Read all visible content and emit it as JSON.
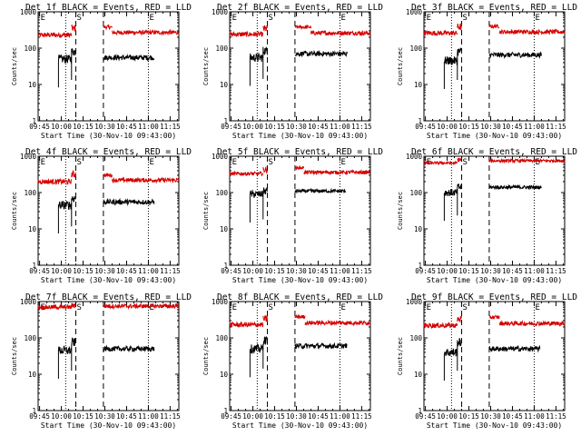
{
  "chart_data": [
    {
      "type": "line",
      "title": "Det 1f BLACK = Events, RED = LLD",
      "xlabel": "Start Time (30-Nov-10 09:43:00)",
      "ylabel": "Counts/sec",
      "scale": "log",
      "ylim": [
        1,
        1000
      ],
      "yticks": [
        "1",
        "10",
        "100",
        "1000"
      ],
      "xticks": [
        "09:45",
        "10:00",
        "10:15",
        "10:30",
        "10:45",
        "11:00",
        "11:15"
      ],
      "markers": [
        {
          "label": "E",
          "time": "09:45"
        },
        {
          "label": "S",
          "time": "10:10"
        },
        {
          "label": "E",
          "time": "11:00"
        }
      ],
      "series": [
        {
          "color": "red",
          "segments": [
            {
              "start": "09:44",
              "end": "10:07",
              "level": 230,
              "noise": 0.07
            },
            {
              "start": "10:07",
              "end": "10:10",
              "level": 350,
              "noise": 0.1
            },
            {
              "start": "10:29",
              "end": "10:35",
              "level": 380,
              "noise": 0.05
            },
            {
              "start": "10:35",
              "end": "11:21",
              "level": 270,
              "noise": 0.06
            }
          ]
        },
        {
          "color": "black",
          "segments": [
            {
              "start": "09:58",
              "end": "10:07",
              "level": 50,
              "noise": 0.12
            },
            {
              "start": "10:07",
              "end": "10:10",
              "level": 80,
              "noise": 0.12
            },
            {
              "start": "10:29",
              "end": "11:04",
              "level": 55,
              "noise": 0.07
            }
          ]
        }
      ]
    },
    {
      "type": "line",
      "title": "Det 2f BLACK = Events, RED = LLD",
      "xlabel": "Start Time (30-Nov-10 09:43:00)",
      "ylabel": "Counts/sec",
      "scale": "log",
      "ylim": [
        1,
        1000
      ],
      "yticks": [
        "1",
        "10",
        "100",
        "1000"
      ],
      "xticks": [
        "09:45",
        "10:00",
        "10:15",
        "10:30",
        "10:45",
        "11:00",
        "11:15"
      ],
      "markers": [
        {
          "label": "E",
          "time": "09:45"
        },
        {
          "label": "S",
          "time": "10:10"
        },
        {
          "label": "E",
          "time": "11:00"
        }
      ],
      "series": [
        {
          "color": "red",
          "segments": [
            {
              "start": "09:44",
              "end": "10:07",
              "level": 240,
              "noise": 0.07
            },
            {
              "start": "10:07",
              "end": "10:10",
              "level": 340,
              "noise": 0.1
            },
            {
              "start": "10:29",
              "end": "10:40",
              "level": 380,
              "noise": 0.05
            },
            {
              "start": "10:40",
              "end": "11:21",
              "level": 260,
              "noise": 0.06
            }
          ]
        },
        {
          "color": "black",
          "segments": [
            {
              "start": "09:58",
              "end": "10:07",
              "level": 55,
              "noise": 0.12
            },
            {
              "start": "10:07",
              "end": "10:10",
              "level": 85,
              "noise": 0.12
            },
            {
              "start": "10:29",
              "end": "11:05",
              "level": 70,
              "noise": 0.07
            }
          ]
        }
      ]
    },
    {
      "type": "line",
      "title": "Det 3f BLACK = Events, RED = LLD",
      "xlabel": "Start Time (30-Nov-10 09:43:00)",
      "ylabel": "Counts/sec",
      "scale": "log",
      "ylim": [
        1,
        1000
      ],
      "yticks": [
        "1",
        "10",
        "100",
        "1000"
      ],
      "xticks": [
        "09:45",
        "10:00",
        "10:15",
        "10:30",
        "10:45",
        "11:00",
        "11:15"
      ],
      "markers": [
        {
          "label": "E",
          "time": "09:45"
        },
        {
          "label": "S",
          "time": "10:10"
        },
        {
          "label": "E",
          "time": "11:00"
        }
      ],
      "series": [
        {
          "color": "red",
          "segments": [
            {
              "start": "09:44",
              "end": "10:07",
              "level": 260,
              "noise": 0.07
            },
            {
              "start": "10:07",
              "end": "10:10",
              "level": 380,
              "noise": 0.1
            },
            {
              "start": "10:29",
              "end": "10:36",
              "level": 400,
              "noise": 0.05
            },
            {
              "start": "10:36",
              "end": "11:21",
              "level": 280,
              "noise": 0.06
            }
          ]
        },
        {
          "color": "black",
          "segments": [
            {
              "start": "09:58",
              "end": "10:07",
              "level": 45,
              "noise": 0.12
            },
            {
              "start": "10:07",
              "end": "10:10",
              "level": 80,
              "noise": 0.12
            },
            {
              "start": "10:29",
              "end": "11:05",
              "level": 65,
              "noise": 0.07
            }
          ]
        }
      ]
    },
    {
      "type": "line",
      "title": "Det 4f BLACK = Events, RED = LLD",
      "xlabel": "Start Time (30-Nov-10 09:43:00)",
      "ylabel": "Counts/sec",
      "scale": "log",
      "ylim": [
        1,
        1000
      ],
      "yticks": [
        "1",
        "10",
        "100",
        "1000"
      ],
      "xticks": [
        "09:45",
        "10:00",
        "10:15",
        "10:30",
        "10:45",
        "11:00",
        "11:15"
      ],
      "markers": [
        {
          "label": "E",
          "time": "09:45"
        },
        {
          "label": "S",
          "time": "10:10"
        },
        {
          "label": "E",
          "time": "11:00"
        }
      ],
      "series": [
        {
          "color": "red",
          "segments": [
            {
              "start": "09:44",
              "end": "10:07",
              "level": 200,
              "noise": 0.07
            },
            {
              "start": "10:07",
              "end": "10:10",
              "level": 320,
              "noise": 0.1
            },
            {
              "start": "10:29",
              "end": "10:35",
              "level": 300,
              "noise": 0.05
            },
            {
              "start": "10:35",
              "end": "11:21",
              "level": 220,
              "noise": 0.06
            }
          ]
        },
        {
          "color": "black",
          "segments": [
            {
              "start": "09:58",
              "end": "10:07",
              "level": 45,
              "noise": 0.12
            },
            {
              "start": "10:07",
              "end": "10:10",
              "level": 70,
              "noise": 0.12
            },
            {
              "start": "10:29",
              "end": "11:04",
              "level": 55,
              "noise": 0.07
            }
          ]
        }
      ]
    },
    {
      "type": "line",
      "title": "Det 5f BLACK = Events, RED = LLD",
      "xlabel": "Start Time (30-Nov-10 09:43:00)",
      "ylabel": "Counts/sec",
      "scale": "log",
      "ylim": [
        1,
        1000
      ],
      "yticks": [
        "1",
        "10",
        "100",
        "1000"
      ],
      "xticks": [
        "09:45",
        "10:00",
        "10:15",
        "10:30",
        "10:45",
        "11:00",
        "11:15"
      ],
      "markers": [
        {
          "label": "E",
          "time": "09:45"
        },
        {
          "label": "S",
          "time": "10:10"
        },
        {
          "label": "E",
          "time": "11:00"
        }
      ],
      "series": [
        {
          "color": "red",
          "segments": [
            {
              "start": "09:44",
              "end": "10:07",
              "level": 330,
              "noise": 0.05
            },
            {
              "start": "10:07",
              "end": "10:10",
              "level": 420,
              "noise": 0.08
            },
            {
              "start": "10:29",
              "end": "10:35",
              "level": 480,
              "noise": 0.04
            },
            {
              "start": "10:35",
              "end": "11:21",
              "level": 360,
              "noise": 0.05
            }
          ]
        },
        {
          "color": "black",
          "segments": [
            {
              "start": "09:58",
              "end": "10:07",
              "level": 90,
              "noise": 0.1
            },
            {
              "start": "10:07",
              "end": "10:10",
              "level": 110,
              "noise": 0.1
            },
            {
              "start": "10:29",
              "end": "11:04",
              "level": 110,
              "noise": 0.05
            }
          ]
        }
      ]
    },
    {
      "type": "line",
      "title": "Det 6f BLACK = Events, RED = LLD",
      "xlabel": "Start Time (30-Nov-10 09:43:00)",
      "ylabel": "Counts/sec",
      "scale": "log",
      "ylim": [
        1,
        1000
      ],
      "yticks": [
        "1",
        "10",
        "100",
        "1000"
      ],
      "xticks": [
        "09:45",
        "10:00",
        "10:15",
        "10:30",
        "10:45",
        "11:00",
        "11:15"
      ],
      "markers": [
        {
          "label": "E",
          "time": "09:45"
        },
        {
          "label": "S",
          "time": "10:10"
        },
        {
          "label": "E",
          "time": "11:00"
        }
      ],
      "series": [
        {
          "color": "red",
          "segments": [
            {
              "start": "09:44",
              "end": "10:07",
              "level": 650,
              "noise": 0.04
            },
            {
              "start": "10:07",
              "end": "10:10",
              "level": 800,
              "noise": 0.06
            },
            {
              "start": "10:29",
              "end": "11:21",
              "level": 750,
              "noise": 0.04
            }
          ]
        },
        {
          "color": "black",
          "segments": [
            {
              "start": "09:58",
              "end": "10:07",
              "level": 100,
              "noise": 0.1
            },
            {
              "start": "10:07",
              "end": "10:10",
              "level": 140,
              "noise": 0.1
            },
            {
              "start": "10:29",
              "end": "11:05",
              "level": 140,
              "noise": 0.05
            }
          ]
        }
      ]
    },
    {
      "type": "line",
      "title": "Det 7f BLACK = Events, RED = LLD",
      "xlabel": "Start Time (30-Nov-10 09:43:00)",
      "ylabel": "Counts/sec",
      "scale": "log",
      "ylim": [
        1,
        1000
      ],
      "yticks": [
        "1",
        "10",
        "100",
        "1000"
      ],
      "xticks": [
        "09:45",
        "10:00",
        "10:15",
        "10:30",
        "10:45",
        "11:00",
        "11:15"
      ],
      "markers": [
        {
          "label": "E",
          "time": "09:45"
        },
        {
          "label": "S",
          "time": "10:10"
        },
        {
          "label": "E",
          "time": "11:00"
        }
      ],
      "series": [
        {
          "color": "red",
          "segments": [
            {
              "start": "09:44",
              "end": "10:07",
              "level": 700,
              "noise": 0.06
            },
            {
              "start": "10:07",
              "end": "10:10",
              "level": 800,
              "noise": 0.08
            },
            {
              "start": "10:29",
              "end": "11:21",
              "level": 750,
              "noise": 0.06
            }
          ]
        },
        {
          "color": "black",
          "segments": [
            {
              "start": "09:58",
              "end": "10:07",
              "level": 45,
              "noise": 0.12
            },
            {
              "start": "10:07",
              "end": "10:10",
              "level": 75,
              "noise": 0.12
            },
            {
              "start": "10:29",
              "end": "11:04",
              "level": 50,
              "noise": 0.07
            }
          ]
        }
      ]
    },
    {
      "type": "line",
      "title": "Det 8f BLACK = Events, RED = LLD",
      "xlabel": "Start Time (30-Nov-10 09:43:00)",
      "ylabel": "Counts/sec",
      "scale": "log",
      "ylim": [
        1,
        1000
      ],
      "yticks": [
        "1",
        "10",
        "100",
        "1000"
      ],
      "xticks": [
        "09:45",
        "10:00",
        "10:15",
        "10:30",
        "10:45",
        "11:00",
        "11:15"
      ],
      "markers": [
        {
          "label": "E",
          "time": "09:45"
        },
        {
          "label": "S",
          "time": "10:10"
        },
        {
          "label": "E",
          "time": "11:00"
        }
      ],
      "series": [
        {
          "color": "red",
          "segments": [
            {
              "start": "09:44",
              "end": "10:07",
              "level": 230,
              "noise": 0.07
            },
            {
              "start": "10:07",
              "end": "10:10",
              "level": 330,
              "noise": 0.1
            },
            {
              "start": "10:29",
              "end": "10:36",
              "level": 380,
              "noise": 0.05
            },
            {
              "start": "10:36",
              "end": "11:21",
              "level": 260,
              "noise": 0.06
            }
          ]
        },
        {
          "color": "black",
          "segments": [
            {
              "start": "09:58",
              "end": "10:07",
              "level": 50,
              "noise": 0.12
            },
            {
              "start": "10:07",
              "end": "10:10",
              "level": 85,
              "noise": 0.12
            },
            {
              "start": "10:29",
              "end": "11:05",
              "level": 60,
              "noise": 0.07
            }
          ]
        }
      ]
    },
    {
      "type": "line",
      "title": "Det 9f BLACK = Events, RED = LLD",
      "xlabel": "Start Time (30-Nov-10 09:43:00)",
      "ylabel": "Counts/sec",
      "scale": "log",
      "ylim": [
        1,
        1000
      ],
      "yticks": [
        "1",
        "10",
        "100",
        "1000"
      ],
      "xticks": [
        "09:45",
        "10:00",
        "10:15",
        "10:30",
        "10:45",
        "11:00",
        "11:15"
      ],
      "markers": [
        {
          "label": "E",
          "time": "09:45"
        },
        {
          "label": "S",
          "time": "10:10"
        },
        {
          "label": "E",
          "time": "11:00"
        }
      ],
      "series": [
        {
          "color": "red",
          "segments": [
            {
              "start": "09:44",
              "end": "10:07",
              "level": 220,
              "noise": 0.07
            },
            {
              "start": "10:07",
              "end": "10:10",
              "level": 330,
              "noise": 0.1
            },
            {
              "start": "10:29",
              "end": "10:36",
              "level": 370,
              "noise": 0.05
            },
            {
              "start": "10:36",
              "end": "11:21",
              "level": 250,
              "noise": 0.06
            }
          ]
        },
        {
          "color": "black",
          "segments": [
            {
              "start": "09:58",
              "end": "10:07",
              "level": 40,
              "noise": 0.12
            },
            {
              "start": "10:07",
              "end": "10:10",
              "level": 75,
              "noise": 0.12
            },
            {
              "start": "10:29",
              "end": "11:04",
              "level": 50,
              "noise": 0.07
            }
          ]
        }
      ]
    }
  ]
}
